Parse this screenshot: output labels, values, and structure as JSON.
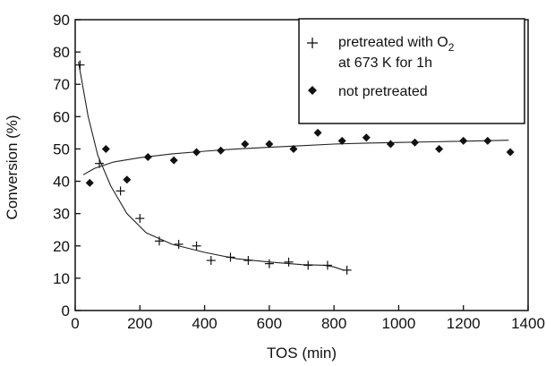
{
  "chart_data": {
    "type": "scatter",
    "xlabel": "TOS (min)",
    "ylabel": "Conversion (%)",
    "xlim": [
      0,
      1400
    ],
    "ylim": [
      0,
      90
    ],
    "xticks": [
      "0",
      "200",
      "400",
      "600",
      "800",
      "1000",
      "1200",
      "1400"
    ],
    "yticks": [
      "0",
      "10",
      "20",
      "30",
      "40",
      "50",
      "60",
      "70",
      "80",
      "90"
    ],
    "grid": false,
    "legend_position": "top-right",
    "series": [
      {
        "name": "pretreated with O2 at 673 K for 1h",
        "legend_lines": [
          "pretreated with O",
          "2",
          "at 673 K for 1h"
        ],
        "marker": "plus",
        "points": [
          [
            15,
            76
          ],
          [
            75,
            45.5
          ],
          [
            140,
            37
          ],
          [
            200,
            28.5
          ],
          [
            260,
            21.5
          ],
          [
            320,
            20.5
          ],
          [
            375,
            20
          ],
          [
            420,
            15.5
          ],
          [
            480,
            16.5
          ],
          [
            535,
            15.5
          ],
          [
            600,
            14.5
          ],
          [
            660,
            15
          ],
          [
            720,
            14
          ],
          [
            780,
            14
          ],
          [
            840,
            12.5
          ]
        ],
        "fit": [
          [
            10,
            77
          ],
          [
            40,
            60
          ],
          [
            70,
            48
          ],
          [
            110,
            38.5
          ],
          [
            160,
            30
          ],
          [
            220,
            24
          ],
          [
            300,
            20.5
          ],
          [
            400,
            18
          ],
          [
            500,
            16
          ],
          [
            600,
            15
          ],
          [
            700,
            14.2
          ],
          [
            770,
            14
          ],
          [
            800,
            13.5
          ],
          [
            830,
            12.5
          ]
        ]
      },
      {
        "name": "not pretreated",
        "marker": "diamond",
        "points": [
          [
            45,
            39.5
          ],
          [
            95,
            50
          ],
          [
            160,
            40.5
          ],
          [
            225,
            47.5
          ],
          [
            305,
            46.5
          ],
          [
            375,
            49
          ],
          [
            450,
            49.5
          ],
          [
            525,
            51.5
          ],
          [
            600,
            51.5
          ],
          [
            675,
            50
          ],
          [
            750,
            55
          ],
          [
            825,
            52.5
          ],
          [
            900,
            53.5
          ],
          [
            975,
            51.5
          ],
          [
            1050,
            52
          ],
          [
            1125,
            50
          ],
          [
            1200,
            52.5
          ],
          [
            1275,
            52.5
          ],
          [
            1345,
            49
          ]
        ],
        "fit": [
          [
            25,
            42
          ],
          [
            60,
            44
          ],
          [
            120,
            46
          ],
          [
            200,
            47.3
          ],
          [
            300,
            48.5
          ],
          [
            400,
            49.3
          ],
          [
            500,
            50
          ],
          [
            600,
            50.5
          ],
          [
            700,
            51
          ],
          [
            800,
            51.5
          ],
          [
            900,
            51.8
          ],
          [
            1000,
            52
          ],
          [
            1100,
            52.2
          ],
          [
            1200,
            52.4
          ],
          [
            1340,
            52.7
          ]
        ]
      }
    ]
  }
}
